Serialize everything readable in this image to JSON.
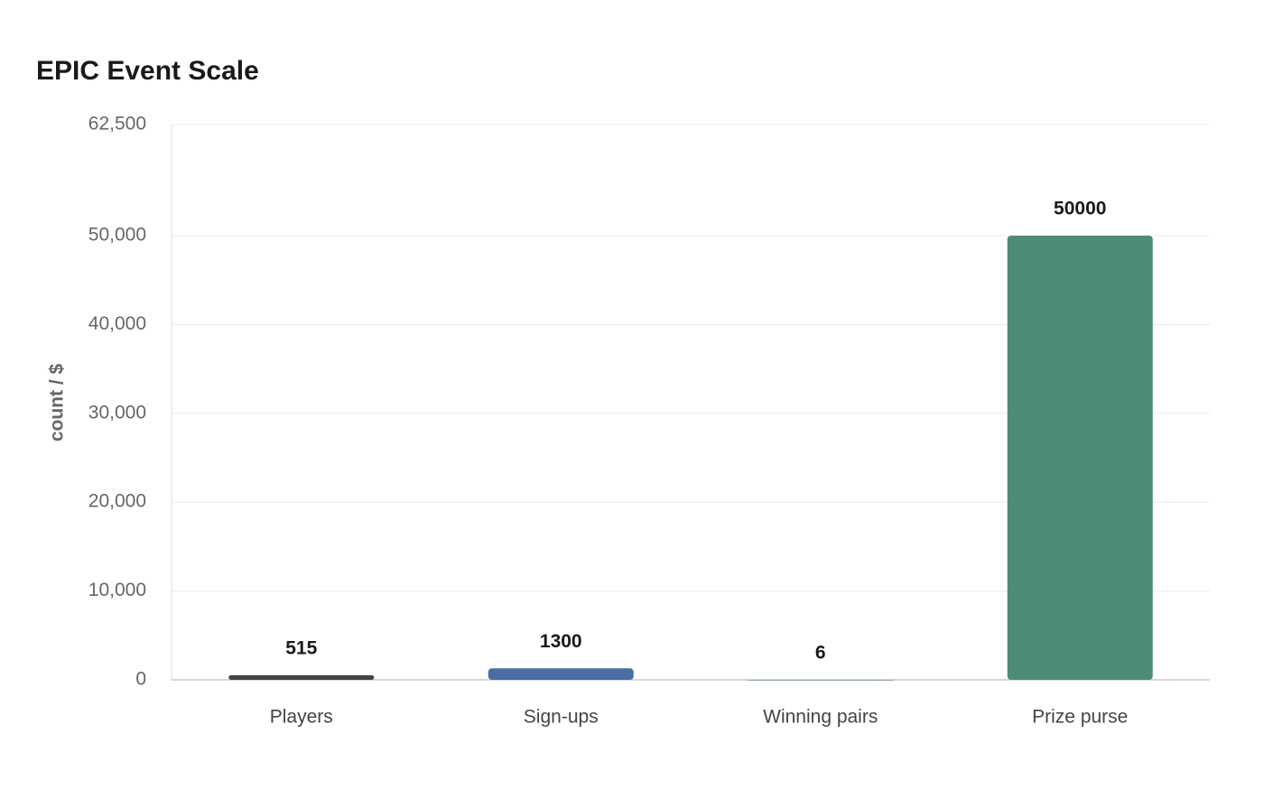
{
  "chart_data": {
    "type": "bar",
    "title": "EPIC Event Scale",
    "y_label": "count / $",
    "categories": [
      "Players",
      "Sign-ups",
      "Winning pairs",
      "Prize purse"
    ],
    "values": [
      515,
      1300,
      6,
      50000
    ],
    "colors": [
      "#3e4744",
      "#4a6da3",
      "#8fa59d",
      "#4e8c7a"
    ],
    "ylim": [
      0,
      62500
    ],
    "yticks": [
      0,
      {
        "value": 10000,
        "label": "10,000"
      },
      {
        "value": 20000,
        "label": "20,000"
      },
      {
        "value": 30000,
        "label": "30,000"
      },
      {
        "value": 40000,
        "label": "40,000"
      },
      {
        "value": 50000,
        "label": "50,000"
      },
      {
        "value": 62500,
        "label": "62,500"
      }
    ],
    "grid": true
  }
}
